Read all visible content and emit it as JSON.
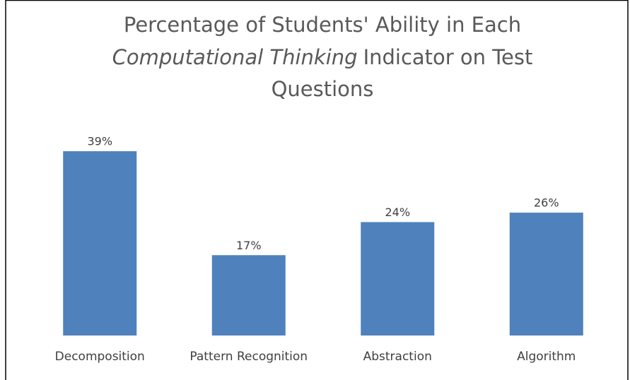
{
  "chart_data": {
    "type": "bar",
    "title": [
      "Percentage of Students' Ability in Each",
      "Computational Thinking",
      "Indicator on Test",
      "Questions"
    ],
    "categories": [
      "Decomposition",
      "Pattern Recognition",
      "Abstraction",
      "Algorithm"
    ],
    "values": [
      39,
      17,
      24,
      26
    ],
    "value_labels": [
      "39%",
      "17%",
      "24%",
      "26%"
    ],
    "color": "#4f81bd"
  }
}
